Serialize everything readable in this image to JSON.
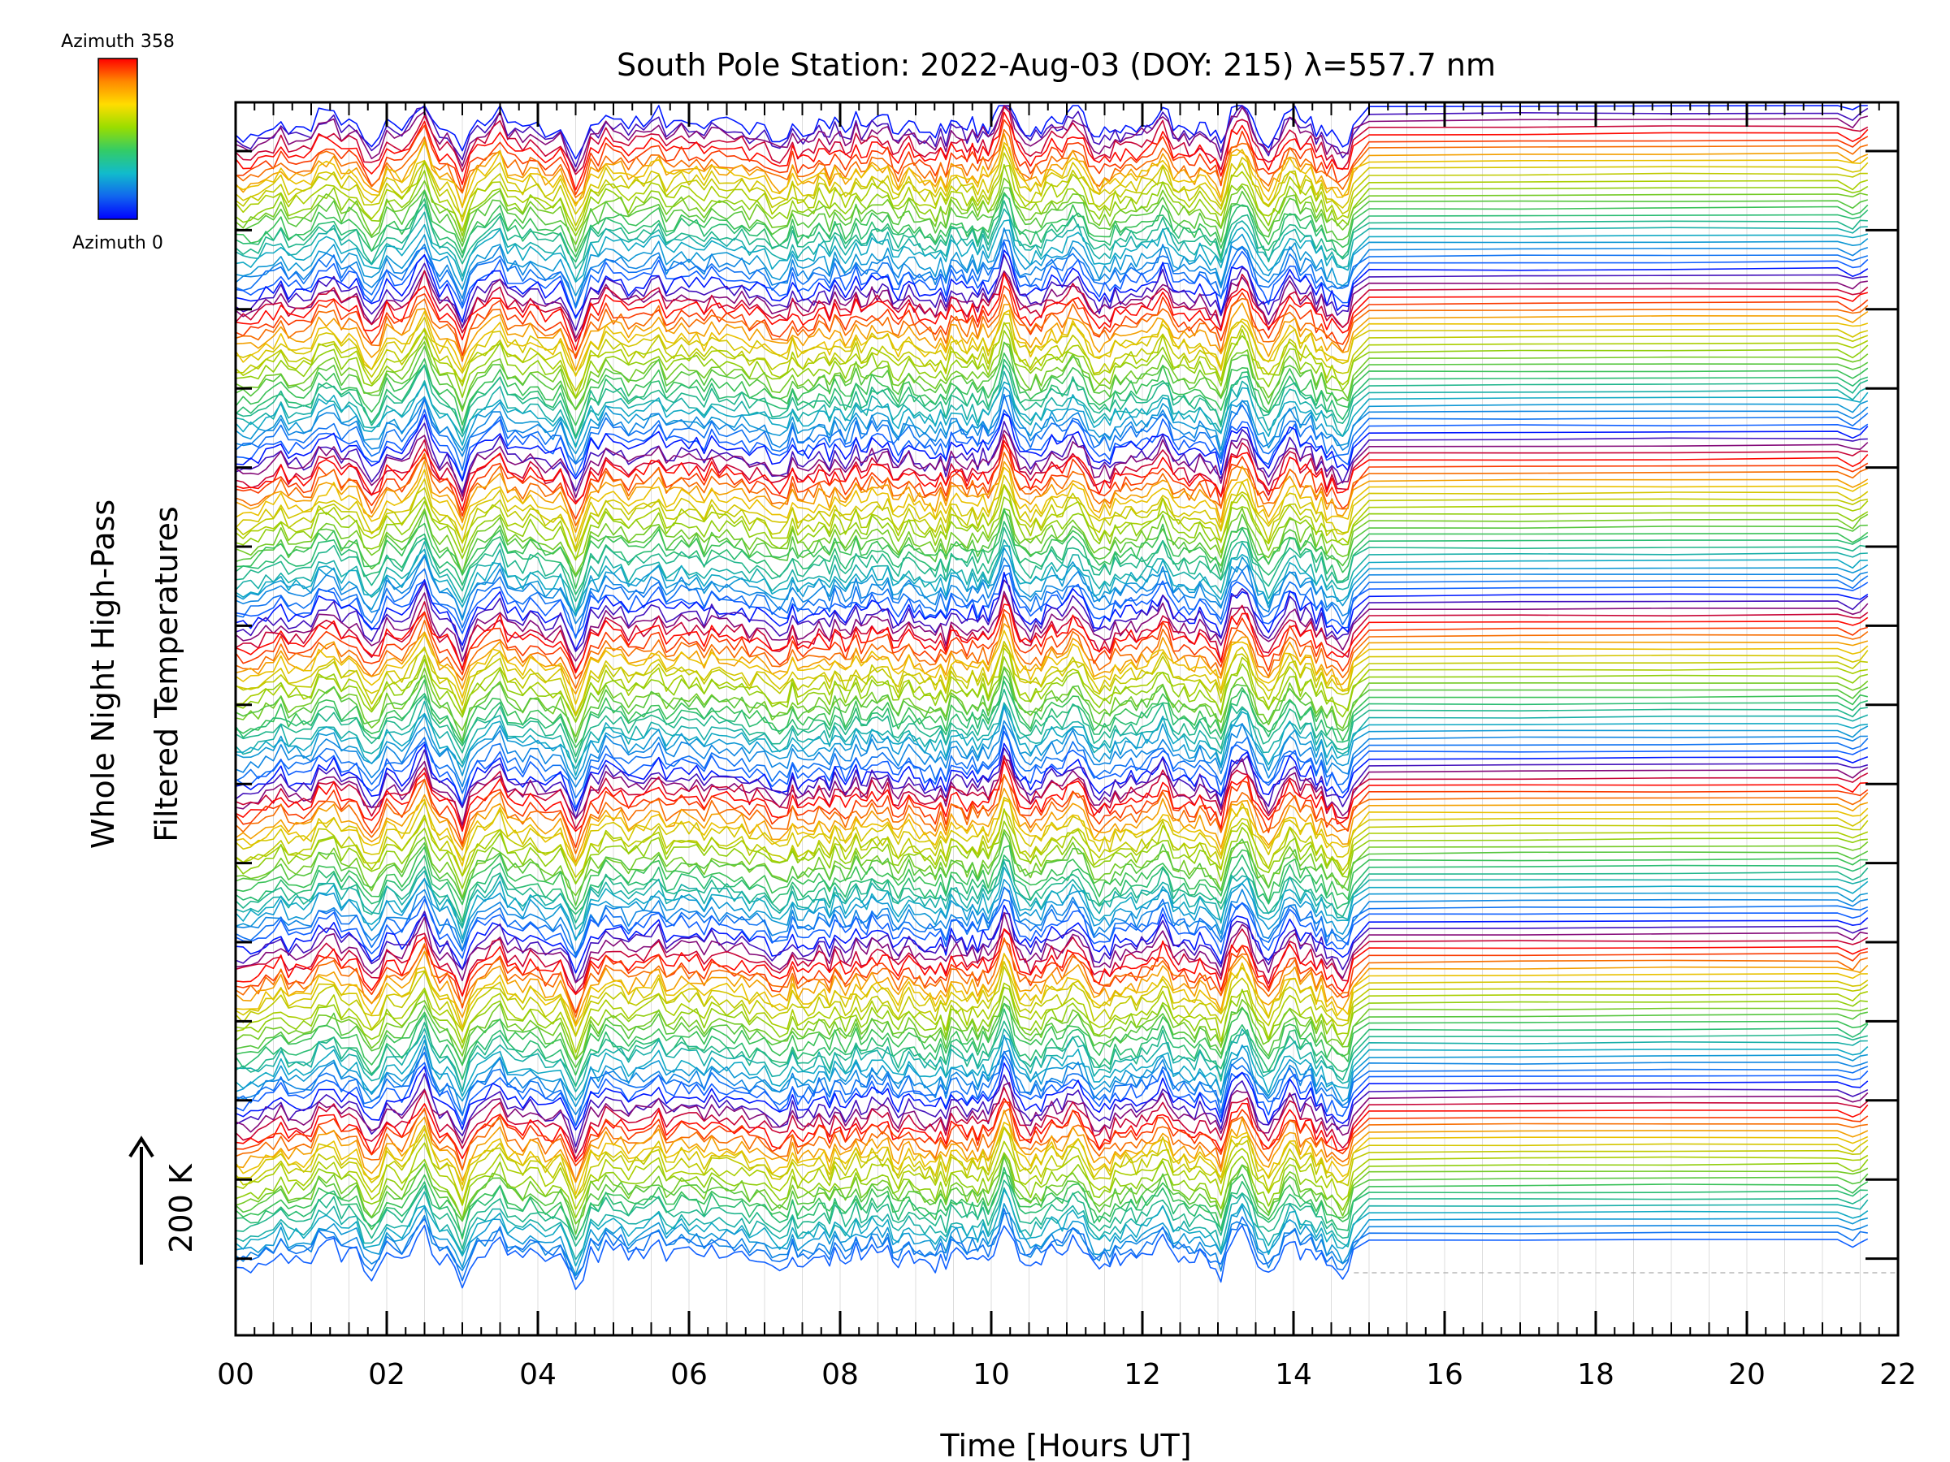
{
  "chart_data": {
    "type": "line",
    "title": "South Pole Station: 2022-Aug-03 (DOY: 215) λ=557.7 nm",
    "xlabel": "Time [Hours UT]",
    "ylabel_line1": "Whole Night High-Pass",
    "ylabel_line2": "Filtered Temperatures",
    "scale_label": "200 K",
    "xlim": [
      0,
      22
    ],
    "x_ticks": [
      "00",
      "02",
      "04",
      "06",
      "08",
      "10",
      "12",
      "14",
      "16",
      "18",
      "20",
      "22"
    ],
    "colorbar": {
      "top_label": "Azimuth 358",
      "bottom_label": "Azimuth 0",
      "colors": [
        "#ff0000",
        "#ff8800",
        "#ffdd00",
        "#99dd00",
        "#33cc66",
        "#11bbcc",
        "#1166ee",
        "#0000ff"
      ]
    },
    "stack": {
      "groups": 7,
      "lines_per_group": 24,
      "band_colors": [
        "#0018ff",
        "#ff0000",
        "#f0c000",
        "#a0d000",
        "#30c060",
        "#10a8c8",
        "#1060ff"
      ]
    },
    "feature_times": [
      0.1,
      1.2,
      1.8,
      2.5,
      3.0,
      3.5,
      4.5,
      5.0,
      5.6,
      7.2,
      7.5,
      8.5,
      9.3,
      10.2,
      11.1,
      11.5,
      12.3,
      13.0,
      13.3,
      13.6,
      14.0,
      14.6,
      21.4,
      21.6
    ],
    "feature_amplitudes": [
      -0.6,
      0.6,
      -0.5,
      1.0,
      -0.9,
      0.7,
      -1.0,
      0.4,
      0.5,
      -0.4,
      -0.3,
      0.4,
      -0.3,
      1.0,
      0.8,
      -0.5,
      0.5,
      -0.6,
      0.9,
      -0.7,
      0.5,
      -0.8,
      -0.5,
      0.4
    ],
    "quiet_after": 14.8,
    "end_time": 21.6
  }
}
